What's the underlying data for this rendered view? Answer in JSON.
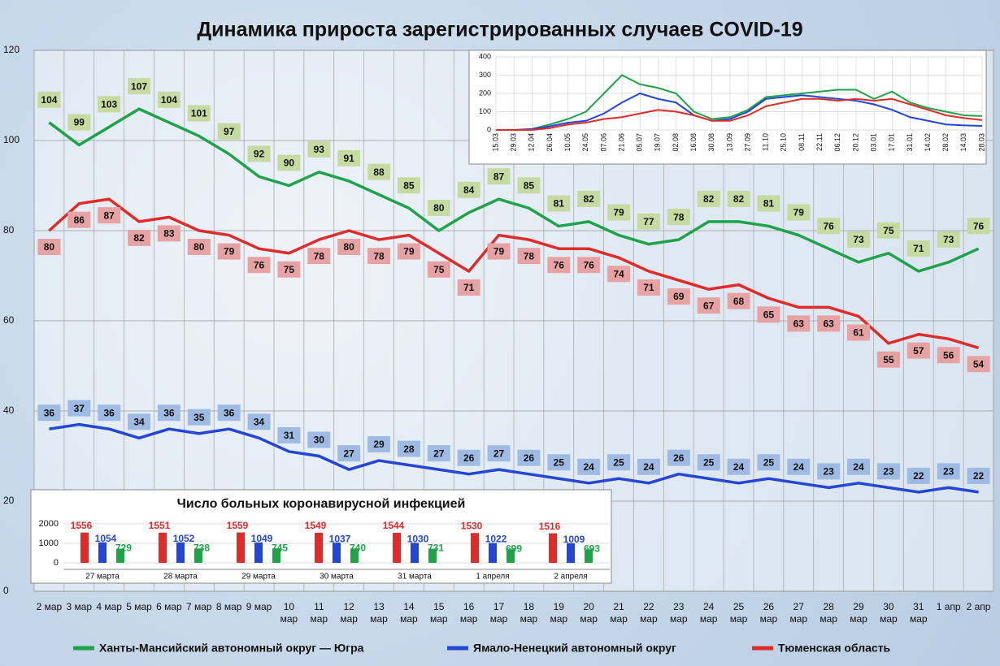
{
  "chart_data": [
    {
      "type": "line",
      "title": "Динамика прироста зарегистрированных случаев COVID-19",
      "categories": [
        "2 мар",
        "3 мар",
        "4 мар",
        "5 мар",
        "6 мар",
        "7 мар",
        "8 мар",
        "9 мар",
        "10 мар",
        "11 мар",
        "12 мар",
        "13 мар",
        "14 мар",
        "15 мар",
        "16 мар",
        "17 мар",
        "18 мар",
        "19 мар",
        "20 мар",
        "21 мар",
        "22 мар",
        "23 мар",
        "24 мар",
        "25 мар",
        "26 мар",
        "27 мар",
        "28 мар",
        "29 мар",
        "30 мар",
        "31 мар",
        "1 апр",
        "2 апр"
      ],
      "series": [
        {
          "name": "Ханты-Мансийский автономный округ — Югра",
          "color": "#1fa34a",
          "label_color": "#c6dba2",
          "values": [
            104,
            99,
            103,
            107,
            104,
            101,
            97,
            92,
            90,
            93,
            91,
            88,
            85,
            80,
            84,
            87,
            85,
            81,
            82,
            79,
            77,
            78,
            82,
            82,
            81,
            79,
            76,
            73,
            75,
            71,
            73,
            76
          ]
        },
        {
          "name": "Ямало-Ненецкий автономный округ",
          "color": "#2346d6",
          "label_color": "#9fbbe3",
          "values": [
            36,
            37,
            36,
            34,
            36,
            35,
            36,
            34,
            31,
            30,
            27,
            29,
            28,
            27,
            26,
            27,
            26,
            25,
            24,
            25,
            24,
            26,
            25,
            24,
            25,
            24,
            23,
            24,
            23,
            22,
            23,
            22
          ]
        },
        {
          "name": "Тюменская область",
          "color": "#e02b2b",
          "label_color": "#e7a3a3",
          "values": [
            80,
            86,
            87,
            82,
            83,
            80,
            79,
            76,
            75,
            78,
            80,
            78,
            79,
            75,
            71,
            79,
            78,
            76,
            76,
            74,
            71,
            69,
            67,
            68,
            65,
            63,
            63,
            61,
            55,
            57,
            56,
            54
          ]
        }
      ],
      "ylim": [
        0,
        120
      ],
      "yticks": [
        0,
        20,
        40,
        60,
        80,
        100,
        120
      ],
      "grid": true,
      "legend": "bottom"
    },
    {
      "type": "line",
      "categories": [
        "15.03",
        "29.03",
        "12.04",
        "26.04",
        "10.05",
        "24.05",
        "07.06",
        "21.06",
        "05.07",
        "19.07",
        "02.08",
        "16.08",
        "30.08",
        "13.09",
        "27.09",
        "11.10",
        "25.10",
        "08.11",
        "22.11",
        "06.12",
        "20.12",
        "03.01",
        "17.01",
        "31.01",
        "14.02",
        "28.02",
        "14.03",
        "28.03"
      ],
      "series": [
        {
          "color": "#1fa34a",
          "values": [
            0,
            0,
            5,
            30,
            60,
            100,
            200,
            300,
            250,
            230,
            200,
            100,
            60,
            70,
            110,
            180,
            190,
            200,
            210,
            220,
            220,
            170,
            210,
            150,
            120,
            100,
            80,
            76
          ]
        },
        {
          "color": "#2346d6",
          "values": [
            0,
            0,
            5,
            20,
            40,
            50,
            90,
            150,
            200,
            170,
            150,
            80,
            50,
            60,
            100,
            170,
            180,
            190,
            180,
            170,
            160,
            140,
            110,
            70,
            50,
            30,
            25,
            22
          ]
        },
        {
          "color": "#e02b2b",
          "values": [
            0,
            0,
            0,
            10,
            30,
            40,
            60,
            70,
            90,
            110,
            100,
            80,
            50,
            50,
            80,
            130,
            150,
            170,
            170,
            160,
            170,
            160,
            170,
            140,
            110,
            80,
            65,
            54
          ]
        }
      ],
      "ylim": [
        0,
        400
      ],
      "yticks": [
        0,
        100,
        200,
        300,
        400
      ],
      "grid": true
    },
    {
      "type": "bar",
      "title": "Число больных коронавирусной инфекцией",
      "categories": [
        "27 марта",
        "28 марта",
        "29 марта",
        "30 марта",
        "31 марта",
        "1 апреля",
        "2 апреля"
      ],
      "series": [
        {
          "color": "#e02b2b",
          "values": [
            1556,
            1551,
            1559,
            1549,
            1544,
            1530,
            1516
          ]
        },
        {
          "color": "#2346d6",
          "values": [
            1054,
            1052,
            1049,
            1037,
            1030,
            1022,
            1009
          ]
        },
        {
          "color": "#1fa34a",
          "values": [
            729,
            738,
            745,
            740,
            731,
            699,
            693
          ]
        }
      ],
      "ylim": [
        0,
        2000
      ],
      "yticks": [
        0,
        1000,
        2000
      ],
      "grid": true
    }
  ]
}
